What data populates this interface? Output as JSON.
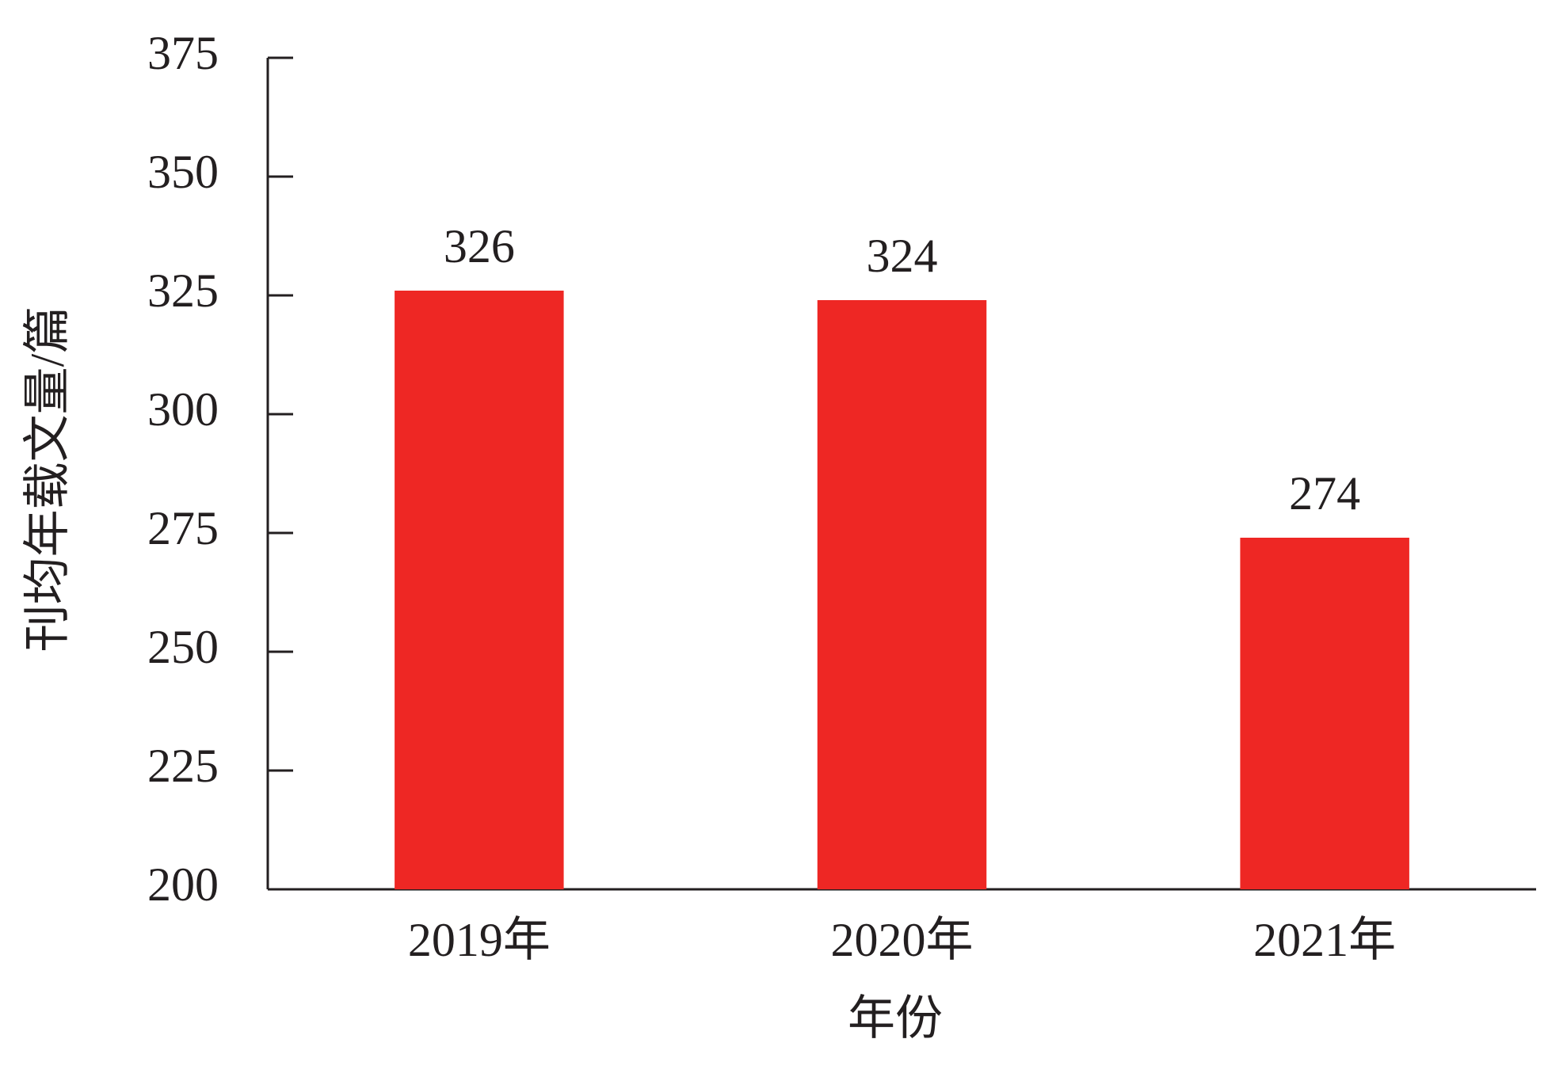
{
  "chart_data": {
    "type": "bar",
    "x_label": "年份",
    "y_label": "刊均年载文量/篇",
    "categories": [
      "2019年",
      "2020年",
      "2021年"
    ],
    "values": [
      326,
      324,
      274
    ],
    "color": "#ee2724",
    "ylim": [
      200,
      375
    ],
    "yticks": [
      200,
      225,
      250,
      275,
      300,
      325,
      350,
      375
    ],
    "grid": false
  }
}
